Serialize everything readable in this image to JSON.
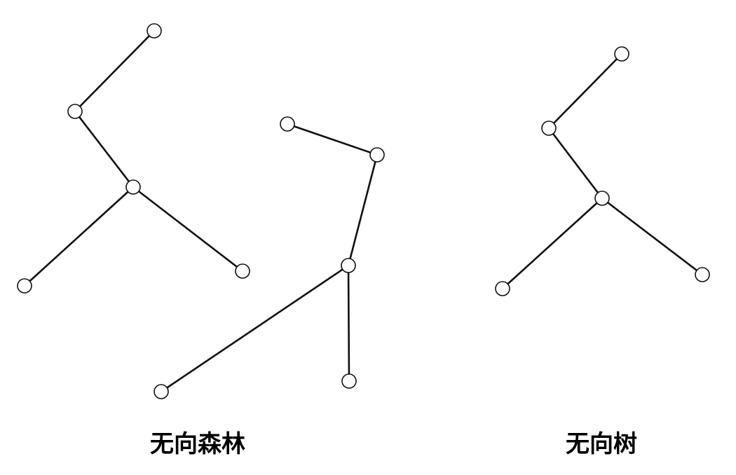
{
  "captions": {
    "forest": "无向森林",
    "tree": "无向树"
  },
  "colors": {
    "edge": "#111111",
    "node_fill": "#ffffff",
    "node_stroke": "#111111"
  },
  "graphs": [
    {
      "id": "forest-tree-1",
      "nodes": [
        "a1",
        "a2",
        "a3",
        "a4",
        "a5"
      ],
      "edges": [
        [
          "a1",
          "a2"
        ],
        [
          "a2",
          "a3"
        ],
        [
          "a3",
          "a4"
        ],
        [
          "a3",
          "a5"
        ]
      ]
    },
    {
      "id": "forest-tree-2",
      "nodes": [
        "b1",
        "b2",
        "b3",
        "b4",
        "b5"
      ],
      "edges": [
        [
          "b1",
          "b2"
        ],
        [
          "b2",
          "b3"
        ],
        [
          "b3",
          "b4"
        ],
        [
          "b3",
          "b5"
        ]
      ]
    },
    {
      "id": "tree",
      "nodes": [
        "c1",
        "c2",
        "c3",
        "c4",
        "c5"
      ],
      "edges": [
        [
          "c1",
          "c2"
        ],
        [
          "c2",
          "c3"
        ],
        [
          "c3",
          "c4"
        ],
        [
          "c3",
          "c5"
        ]
      ]
    }
  ]
}
